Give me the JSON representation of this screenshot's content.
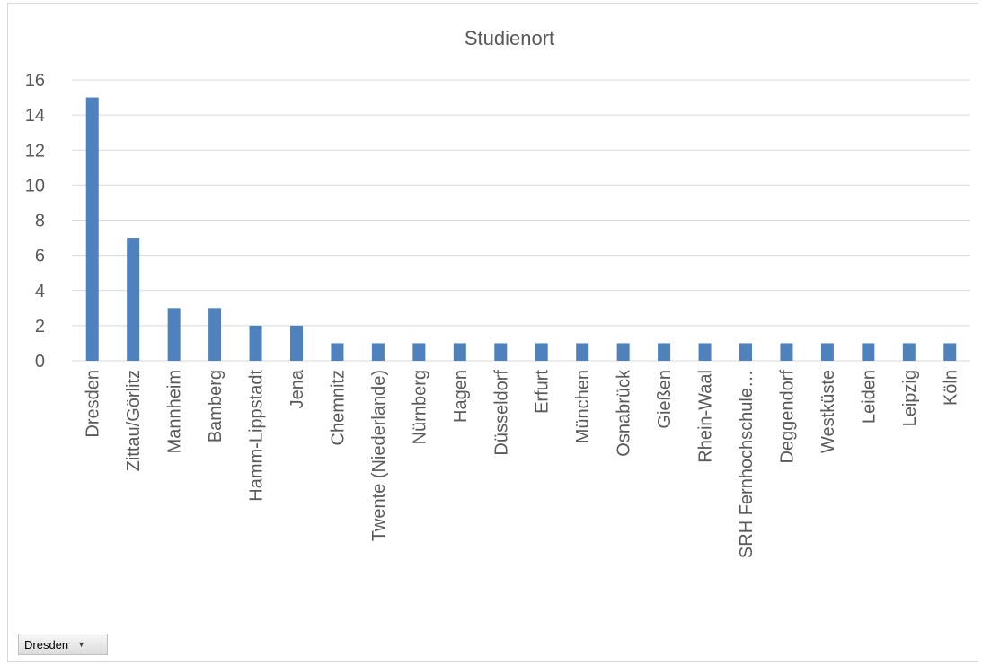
{
  "chart_data": {
    "type": "bar",
    "title": "Studienort",
    "xlabel": "",
    "ylabel": "",
    "ylim": [
      0,
      16
    ],
    "yticks": [
      0,
      2,
      4,
      6,
      8,
      10,
      12,
      14,
      16
    ],
    "grid": true,
    "legend": "none",
    "bar_color": "#4f81bd",
    "categories": [
      "Dresden",
      "Zittau/Görlitz",
      "Mannheim",
      "Bamberg",
      "Hamm-Lippstadt",
      "Jena",
      "Chemnitz",
      "Twente (Niederlande)",
      "Nürnberg",
      "Hagen",
      "Düsseldorf",
      "Erfurt",
      "München",
      "Osnabrück",
      "Gießen",
      "Rhein-Waal",
      "SRH Fernhochschule…",
      "Deggendorf",
      "Westküste",
      "Leiden",
      "Leipzig",
      "Köln"
    ],
    "values": [
      15,
      7,
      3,
      3,
      2,
      2,
      1,
      1,
      1,
      1,
      1,
      1,
      1,
      1,
      1,
      1,
      1,
      1,
      1,
      1,
      1,
      1
    ]
  },
  "filter": {
    "label": "Dresden",
    "icon": "dropdown-arrow-icon"
  }
}
